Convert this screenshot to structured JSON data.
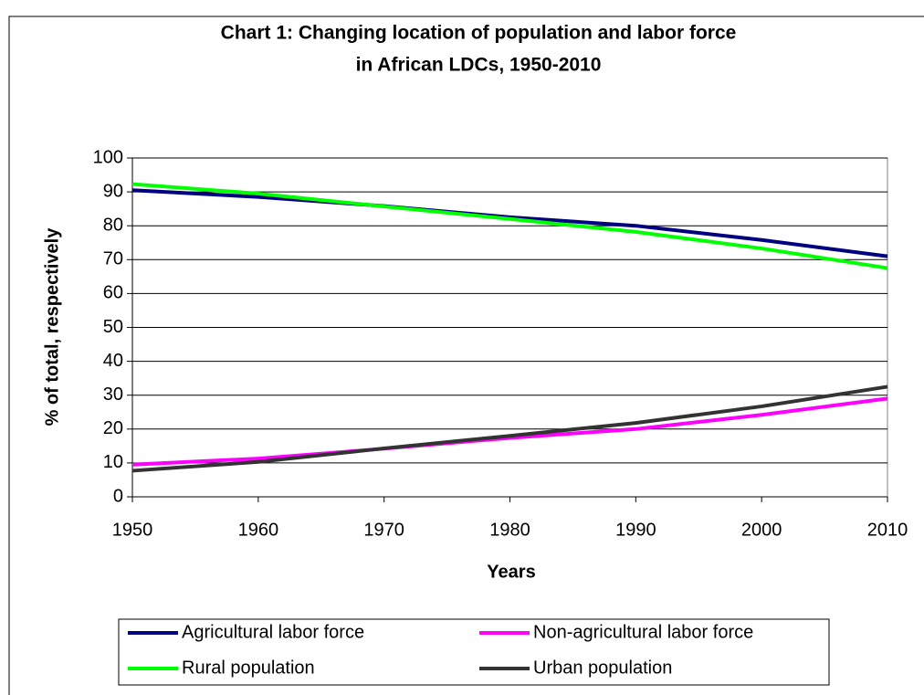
{
  "chart_data": {
    "type": "line",
    "title": [
      "Chart 1: Changing location of population and labor force",
      "in African LDCs, 1950-2010"
    ],
    "x_label": "Years",
    "y_label": "% of total, respectively",
    "x": [
      1950,
      1960,
      1970,
      1980,
      1990,
      2000,
      2010
    ],
    "xlim": [
      1950,
      2010
    ],
    "xticks": [
      1950,
      1960,
      1970,
      1980,
      1990,
      2000,
      2010
    ],
    "ylim": [
      0,
      100
    ],
    "yticks": [
      0,
      10,
      20,
      30,
      40,
      50,
      60,
      70,
      80,
      90,
      100
    ],
    "grid": true,
    "legend": "bottom",
    "series": [
      {
        "name": "Agricultural labor force",
        "color": "#000080",
        "values": [
          90.5,
          88.5,
          85.8,
          82.5,
          80,
          75.8,
          71
        ]
      },
      {
        "name": "Non-agricultural labor force",
        "color": "#ff00ff",
        "values": [
          9.5,
          11.3,
          14.2,
          17.4,
          20,
          24.2,
          29
        ]
      },
      {
        "name": "Rural population",
        "color": "#00ff00",
        "values": [
          92.3,
          89.5,
          85.7,
          82,
          78.2,
          73.3,
          67.5
        ]
      },
      {
        "name": "Urban population",
        "color": "#333333",
        "values": [
          7.7,
          10.3,
          14.3,
          18,
          21.8,
          26.7,
          32.5
        ]
      }
    ]
  }
}
